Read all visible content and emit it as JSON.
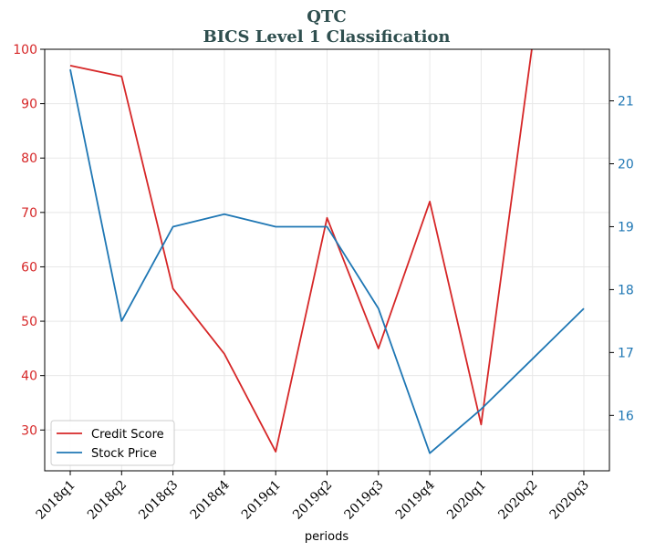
{
  "chart_data": {
    "type": "line",
    "title": "QTC",
    "subtitle": "BICS Level 1 Classification",
    "xlabel": "periods",
    "categories": [
      "2018q1",
      "2018q2",
      "2018q3",
      "2018q4",
      "2019q1",
      "2019q2",
      "2019q3",
      "2019q4",
      "2020q1",
      "2020q2",
      "2020q3"
    ],
    "series": [
      {
        "name": "Credit Score",
        "axis": "left",
        "color": "#d62728",
        "values": [
          97,
          95,
          56,
          44,
          26,
          69,
          45,
          72,
          31,
          101,
          null
        ]
      },
      {
        "name": "Stock Price",
        "axis": "right",
        "color": "#1f77b4",
        "values": [
          21.5,
          17.5,
          19.0,
          19.2,
          19.0,
          19.0,
          17.7,
          15.4,
          16.1,
          16.9,
          17.7
        ]
      }
    ],
    "left_axis": {
      "ylim": [
        22.5,
        100
      ],
      "ticks": [
        "30",
        "40",
        "50",
        "60",
        "70",
        "80",
        "90",
        "100"
      ],
      "color": "#d62728"
    },
    "right_axis": {
      "ylim": [
        15.12,
        21.82
      ],
      "ticks": [
        "16",
        "17",
        "18",
        "19",
        "20",
        "21"
      ],
      "color": "#1f77b4"
    },
    "grid": true,
    "legend_position": "lower-left"
  }
}
